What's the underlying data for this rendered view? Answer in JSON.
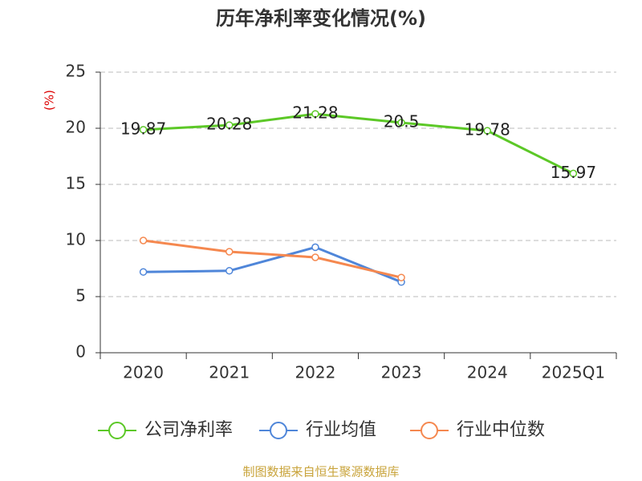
{
  "chart_data": {
    "type": "line",
    "title": "历年净利率变化情况(%)",
    "y_label": "(%)",
    "source": "制图数据来自恒生聚源数据库",
    "categories": [
      "2020",
      "2021",
      "2022",
      "2023",
      "2024",
      "2025Q1"
    ],
    "series": [
      {
        "name": "公司净利率",
        "color": "#5cc827",
        "values": [
          19.87,
          20.28,
          21.28,
          20.5,
          19.78,
          15.97
        ],
        "labels": true
      },
      {
        "name": "行业均值",
        "color": "#4f86d9",
        "values": [
          7.2,
          7.3,
          9.4,
          6.3,
          null,
          null
        ]
      },
      {
        "name": "行业中位数",
        "color": "#f5884f",
        "values": [
          10.0,
          9.0,
          8.5,
          6.7,
          null,
          null
        ]
      }
    ],
    "ylim": [
      0,
      25
    ],
    "yticks": [
      0,
      5,
      10,
      15,
      20,
      25
    ],
    "grid": true,
    "legend": "bottom"
  }
}
